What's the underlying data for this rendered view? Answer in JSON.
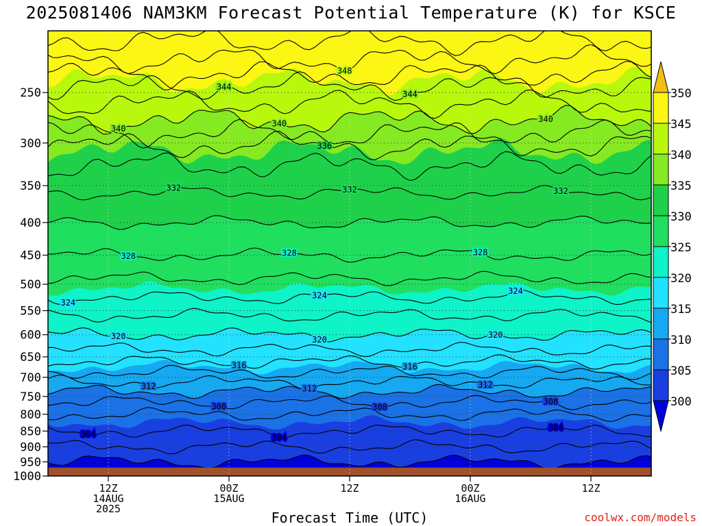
{
  "chart_data": {
    "type": "heatmap",
    "title": "2025081406 NAM3KM Forecast Potential Temperature (K) for KSCE",
    "xlabel": "Forecast Time (UTC)",
    "credit": "coolwx.com/models",
    "y_axis": {
      "scale": "pressure (log, inverted)",
      "range": [
        200,
        1000
      ],
      "ticks": [
        250,
        300,
        350,
        400,
        450,
        500,
        550,
        600,
        650,
        700,
        750,
        800,
        850,
        900,
        950,
        1000
      ]
    },
    "x_axis": {
      "range_hours": [
        0,
        60
      ],
      "ticks": [
        {
          "hour": 6,
          "labels": [
            "12Z",
            "14AUG",
            "2025"
          ]
        },
        {
          "hour": 18,
          "labels": [
            "00Z",
            "15AUG"
          ]
        },
        {
          "hour": 30,
          "labels": [
            "12Z"
          ]
        },
        {
          "hour": 42,
          "labels": [
            "00Z",
            "16AUG"
          ]
        },
        {
          "hour": 54,
          "labels": [
            "12Z"
          ]
        }
      ]
    },
    "grid": true,
    "colorbar": {
      "levels": [
        300,
        305,
        310,
        315,
        320,
        325,
        330,
        335,
        340,
        345,
        350
      ],
      "colors": [
        "#0000dd",
        "#1a3fe0",
        "#1a72e6",
        "#16a8f0",
        "#22e2ff",
        "#0ef3c8",
        "#20df5e",
        "#1fd14a",
        "#86ea22",
        "#b8f80d",
        "#fbf614",
        "#f2bf17"
      ]
    },
    "theta_profile": [
      {
        "p": 200,
        "theta": 351
      },
      {
        "p": 230,
        "theta": 347
      },
      {
        "p": 250,
        "theta": 343
      },
      {
        "p": 270,
        "theta": 341
      },
      {
        "p": 290,
        "theta": 338
      },
      {
        "p": 310,
        "theta": 335
      },
      {
        "p": 350,
        "theta": 332.5
      },
      {
        "p": 400,
        "theta": 330
      },
      {
        "p": 450,
        "theta": 328
      },
      {
        "p": 500,
        "theta": 325.5
      },
      {
        "p": 550,
        "theta": 322.5
      },
      {
        "p": 600,
        "theta": 320
      },
      {
        "p": 650,
        "theta": 317
      },
      {
        "p": 700,
        "theta": 313
      },
      {
        "p": 750,
        "theta": 309
      },
      {
        "p": 800,
        "theta": 306
      },
      {
        "p": 850,
        "theta": 304
      },
      {
        "p": 900,
        "theta": 302
      },
      {
        "p": 950,
        "theta": 300
      },
      {
        "p": 970,
        "theta": 299
      }
    ],
    "contour_interval": 2,
    "contour_labels": [
      {
        "value": 348,
        "hour": 29.5
      },
      {
        "value": 344,
        "hour": 17.5
      },
      {
        "value": 344,
        "hour": 36
      },
      {
        "value": 340,
        "hour": 7
      },
      {
        "value": 340,
        "hour": 23
      },
      {
        "value": 340,
        "hour": 49.5
      },
      {
        "value": 336,
        "hour": 27.5
      },
      {
        "value": 332,
        "hour": 12.5
      },
      {
        "value": 332,
        "hour": 30
      },
      {
        "value": 332,
        "hour": 51
      },
      {
        "value": 328,
        "hour": 8
      },
      {
        "value": 328,
        "hour": 24
      },
      {
        "value": 328,
        "hour": 43
      },
      {
        "value": 324,
        "hour": 2
      },
      {
        "value": 324,
        "hour": 27
      },
      {
        "value": 324,
        "hour": 46.5
      },
      {
        "value": 320,
        "hour": 7
      },
      {
        "value": 320,
        "hour": 27
      },
      {
        "value": 320,
        "hour": 44.5
      },
      {
        "value": 316,
        "hour": 19
      },
      {
        "value": 316,
        "hour": 36
      },
      {
        "value": 312,
        "hour": 10
      },
      {
        "value": 312,
        "hour": 26
      },
      {
        "value": 312,
        "hour": 43.5
      },
      {
        "value": 308,
        "hour": 17
      },
      {
        "value": 308,
        "hour": 33
      },
      {
        "value": 308,
        "hour": 50
      },
      {
        "value": 304,
        "hour": 4
      },
      {
        "value": 304,
        "hour": 23
      },
      {
        "value": 304,
        "hour": 50.5
      }
    ],
    "surface": {
      "p": 970,
      "color": "#a0522d"
    }
  }
}
